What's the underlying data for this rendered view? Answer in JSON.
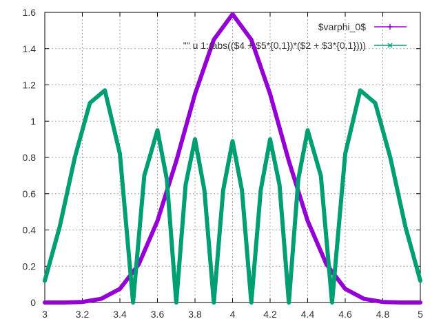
{
  "chart_data": {
    "type": "line",
    "title": "",
    "xlabel": "",
    "ylabel": "",
    "xlim": [
      3,
      5
    ],
    "ylim": [
      0,
      1.6
    ],
    "grid": true,
    "legend_position": "top-right",
    "x_ticks": [
      "3",
      "3.2",
      "3.4",
      "3.6",
      "3.8",
      "4",
      "4.2",
      "4.4",
      "4.6",
      "4.8",
      "5"
    ],
    "y_ticks": [
      "0",
      "0.2",
      "0.4",
      "0.6",
      "0.8",
      "1",
      "1.2",
      "1.4",
      "1.6"
    ],
    "series": [
      {
        "name": "$varphi_0$",
        "color": "#9400d3",
        "marker": "plus",
        "x": [
          3.0,
          3.1,
          3.2,
          3.3,
          3.4,
          3.5,
          3.6,
          3.7,
          3.8,
          3.9,
          4.0,
          4.1,
          4.2,
          4.3,
          4.4,
          4.5,
          4.6,
          4.7,
          4.8,
          4.9,
          5.0
        ],
        "y": [
          0.0,
          0.0,
          0.003,
          0.02,
          0.075,
          0.21,
          0.45,
          0.78,
          1.15,
          1.45,
          1.59,
          1.45,
          1.15,
          0.78,
          0.45,
          0.21,
          0.075,
          0.02,
          0.003,
          0.0,
          0.0
        ]
      },
      {
        "name": "\"\" u 1:(abs(($4 + $5*{0,1})*($2 + $3*{0,1})))",
        "color": "#009e73",
        "marker": "cross",
        "x": [
          3.0,
          3.08,
          3.16,
          3.24,
          3.32,
          3.4,
          3.47,
          3.53,
          3.6,
          3.65,
          3.7,
          3.75,
          3.8,
          3.85,
          3.9,
          3.95,
          4.0,
          4.05,
          4.1,
          4.15,
          4.2,
          4.25,
          4.3,
          4.35,
          4.4,
          4.47,
          4.53,
          4.6,
          4.68,
          4.76,
          4.84,
          4.92,
          5.0
        ],
        "y": [
          0.12,
          0.42,
          0.8,
          1.1,
          1.17,
          0.82,
          0.0,
          0.7,
          0.95,
          0.68,
          0.0,
          0.65,
          0.9,
          0.62,
          0.0,
          0.62,
          0.89,
          0.62,
          0.0,
          0.62,
          0.9,
          0.65,
          0.0,
          0.68,
          0.95,
          0.7,
          0.0,
          0.82,
          1.17,
          1.1,
          0.8,
          0.42,
          0.12
        ]
      }
    ]
  }
}
